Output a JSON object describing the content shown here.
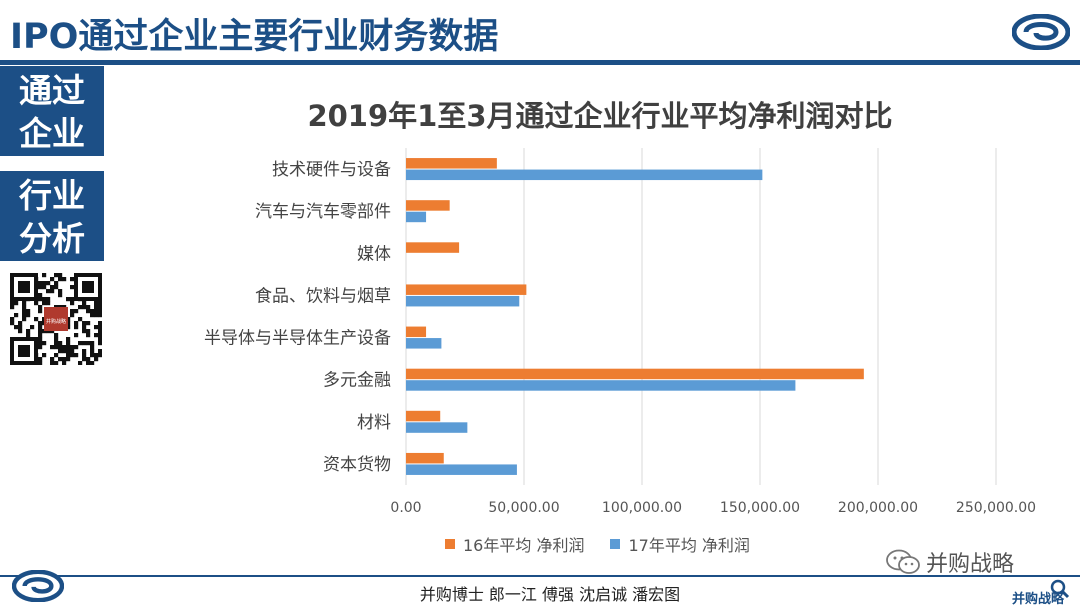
{
  "header": {
    "title": "IPO通过企业主要行业财务数据"
  },
  "sidebar": {
    "box1": [
      "通过",
      "企业"
    ],
    "box2": [
      "行业",
      "分析"
    ],
    "qr_stamp": "并购战略"
  },
  "footer": {
    "authors": "并购博士 郎一江 傅强 沈启诚 潘宏图",
    "wechat_label": "并购战略",
    "watermark": "并购战略"
  },
  "colors": {
    "brand": "#1c4f86",
    "series16": "#ed7d31",
    "series17": "#5b9bd5"
  },
  "chart_data": {
    "type": "bar",
    "orientation": "horizontal",
    "title": "2019年1至3月通过企业行业平均净利润对比",
    "categories": [
      "技术硬件与设备",
      "汽车与汽车零部件",
      "媒体",
      "食品、饮料与烟草",
      "半导体与半导体生产设备",
      "多元金融",
      "材料",
      "资本货物"
    ],
    "series": [
      {
        "name": "16年平均 净利润",
        "color": "#ed7d31",
        "values": [
          38500,
          18500,
          22500,
          51000,
          8500,
          194000,
          14500,
          16000
        ]
      },
      {
        "name": "17年平均 净利润",
        "color": "#5b9bd5",
        "values": [
          151000,
          8500,
          null,
          48000,
          15000,
          165000,
          26000,
          47000
        ]
      }
    ],
    "xlim": [
      0,
      250000
    ],
    "xticks": [
      "0.00",
      "50,000.00",
      "100,000.00",
      "150,000.00",
      "200,000.00",
      "250,000.00"
    ],
    "xtick_values": [
      0,
      50000,
      100000,
      150000,
      200000,
      250000
    ],
    "grid": true,
    "legend": "bottom"
  }
}
